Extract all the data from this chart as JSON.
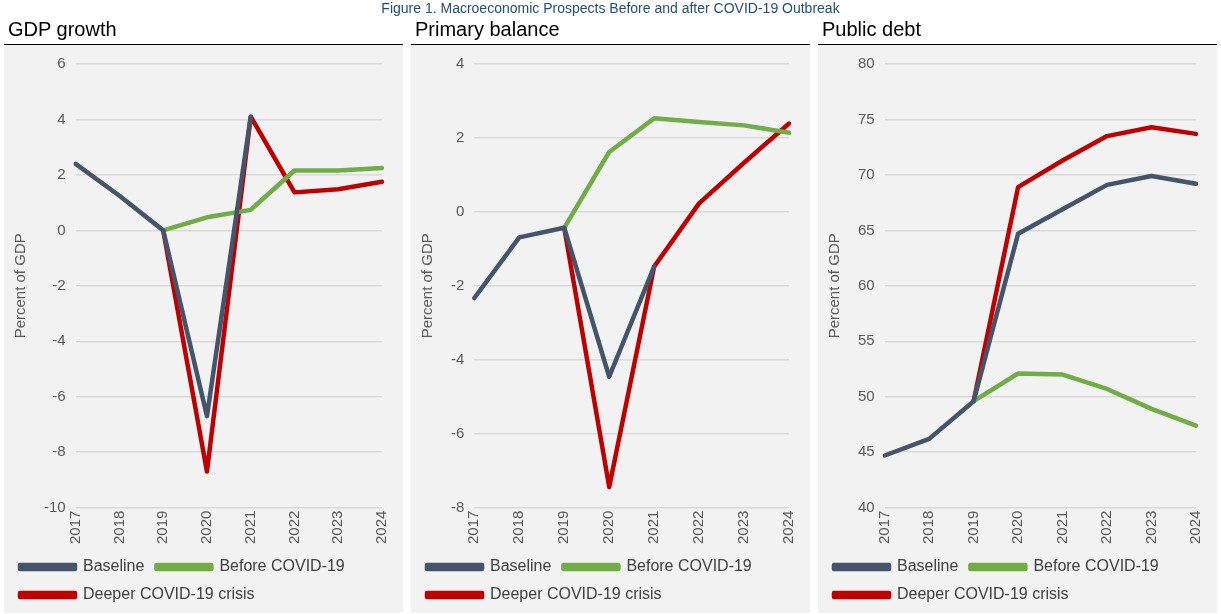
{
  "chart_data": [
    {
      "type": "line",
      "title": "GDP growth",
      "ylabel": "Percent of GDP",
      "annotations": [
        "Figure 1. Macroeconomic Prospects Before and after COVID-19 Outbreak"
      ],
      "categories": [
        "2017",
        "2018",
        "2019",
        "2020",
        "2021",
        "2022",
        "2023",
        "2024"
      ],
      "ylim": [
        -10,
        6
      ],
      "yticks": [
        -10,
        -8,
        -6,
        -4,
        -2,
        0,
        2,
        4,
        6
      ],
      "grid": "y",
      "legend": "bottom",
      "marker": "none",
      "line_style": "solid",
      "series": [
        {
          "name": "Baseline",
          "color": "#44546a",
          "values": [
            2.4,
            1.25,
            0,
            -6.7,
            4.1,
            null,
            null,
            null
          ]
        },
        {
          "name": "Before COVID-19",
          "color": "#70ad47",
          "values": [
            null,
            null,
            0,
            0.47,
            0.74,
            2.16,
            2.16,
            2.25
          ]
        },
        {
          "name": "Deeper COVID-19 crisis",
          "color": "#c00000",
          "values": [
            null,
            null,
            0,
            -8.7,
            4.1,
            1.37,
            1.48,
            1.75
          ]
        }
      ]
    },
    {
      "type": "line",
      "title": "Primary balance",
      "ylabel": "Percent of GDP",
      "categories": [
        "2017",
        "2018",
        "2019",
        "2020",
        "2021",
        "2022",
        "2023",
        "2024"
      ],
      "ylim": [
        -8,
        4
      ],
      "yticks": [
        -8,
        -6,
        -4,
        -2,
        0,
        2,
        4
      ],
      "grid": "y",
      "legend": "bottom",
      "marker": "none",
      "line_style": "solid",
      "series": [
        {
          "name": "Baseline",
          "color": "#44546a",
          "values": [
            -2.33,
            -0.69,
            -0.43,
            -4.46,
            -1.48,
            null,
            null,
            null
          ]
        },
        {
          "name": "Before COVID-19",
          "color": "#70ad47",
          "values": [
            null,
            null,
            -0.43,
            1.62,
            2.53,
            2.43,
            2.34,
            2.14
          ]
        },
        {
          "name": "Deeper COVID-19 crisis",
          "color": "#c00000",
          "values": [
            null,
            null,
            -0.43,
            -7.44,
            -1.48,
            0.23,
            1.33,
            2.39
          ]
        }
      ]
    },
    {
      "type": "line",
      "title": "Public debt",
      "ylabel": "Percent of GDP",
      "categories": [
        "2017",
        "2018",
        "2019",
        "2020",
        "2021",
        "2022",
        "2023",
        "2024"
      ],
      "ylim": [
        40,
        80
      ],
      "yticks": [
        40,
        45,
        50,
        55,
        60,
        65,
        70,
        75,
        80
      ],
      "grid": "y",
      "legend": "bottom",
      "marker": "none",
      "line_style": "solid",
      "series": [
        {
          "name": "Baseline",
          "color": "#44546a",
          "values": [
            44.7,
            46.2,
            49.6,
            64.7,
            66.9,
            69.1,
            69.9,
            69.2
          ]
        },
        {
          "name": "Before COVID-19",
          "color": "#70ad47",
          "values": [
            null,
            null,
            49.6,
            52.1,
            52.0,
            50.7,
            48.9,
            47.4
          ]
        },
        {
          "name": "Deeper COVID-19 crisis",
          "color": "#c00000",
          "values": [
            null,
            null,
            49.6,
            68.9,
            71.3,
            73.5,
            74.3,
            73.7
          ]
        }
      ]
    }
  ]
}
